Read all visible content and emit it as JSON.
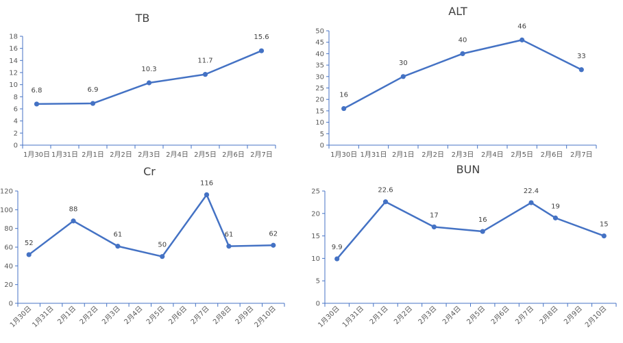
{
  "colors": {
    "series": "#4472C4",
    "axis": "#4472C4",
    "text": "#595959"
  },
  "chart_data": [
    {
      "type": "line",
      "title": "TB",
      "categories": [
        "1月30日",
        "1月31日",
        "2月1日",
        "2月2日",
        "2月3日",
        "2月4日",
        "2月5日",
        "2月6日",
        "2月7日"
      ],
      "yticks": [
        "0",
        "2",
        "4",
        "6",
        "8",
        "10",
        "12",
        "14",
        "16",
        "18"
      ],
      "ylim": [
        0,
        18
      ],
      "grid": false,
      "series": [
        {
          "x": [
            "1月30日",
            "2月1日",
            "2月3日",
            "2月5日",
            "2月7日"
          ],
          "values": [
            6.8,
            6.9,
            10.3,
            11.7,
            15.6
          ],
          "labels": [
            "6.8",
            "6.9",
            "10.3",
            "11.7",
            "15.6"
          ]
        }
      ]
    },
    {
      "type": "line",
      "title": "ALT",
      "categories": [
        "1月30日",
        "1月31日",
        "2月1日",
        "2月2日",
        "2月3日",
        "2月4日",
        "2月5日",
        "2月6日",
        "2月7日"
      ],
      "yticks": [
        "0",
        "5",
        "10",
        "15",
        "20",
        "25",
        "30",
        "35",
        "40",
        "45",
        "50"
      ],
      "ylim": [
        0,
        50
      ],
      "grid": false,
      "series": [
        {
          "x": [
            "1月30日",
            "2月1日",
            "2月3日",
            "2月5日",
            "2月7日"
          ],
          "values": [
            16,
            30,
            40,
            46,
            33
          ],
          "labels": [
            "16",
            "30",
            "40",
            "46",
            "33"
          ]
        }
      ]
    },
    {
      "type": "line",
      "title": "Cr",
      "categories": [
        "1月30日",
        "1月31日",
        "2月1日",
        "2月2日",
        "2月3日",
        "2月4日",
        "2月5日",
        "2月6日",
        "2月7日",
        "2月8日",
        "2月9日",
        "2月10日"
      ],
      "yticks": [
        "0",
        "20",
        "40",
        "60",
        "80",
        "100",
        "120"
      ],
      "ylim": [
        0,
        120
      ],
      "grid": false,
      "series": [
        {
          "x": [
            "1月30日",
            "2月1日",
            "2月3日",
            "2月5日",
            "2月7日",
            "2月8日",
            "2月10日"
          ],
          "values": [
            52,
            88,
            61,
            50,
            116,
            61,
            62
          ],
          "labels": [
            "52",
            "88",
            "61",
            "50",
            "116",
            "61",
            "62"
          ]
        }
      ]
    },
    {
      "type": "line",
      "title": "BUN",
      "categories": [
        "1月30日",
        "1月31日",
        "2月1日",
        "2月2日",
        "2月3日",
        "2月4日",
        "2月5日",
        "2月6日",
        "2月7日",
        "2月8日",
        "2月9日",
        "2月10日"
      ],
      "yticks": [
        "0",
        "5",
        "10",
        "15",
        "20",
        "25"
      ],
      "ylim": [
        0,
        25
      ],
      "grid": false,
      "series": [
        {
          "x": [
            "1月30日",
            "2月1日",
            "2月3日",
            "2月5日",
            "2月7日",
            "2月8日",
            "2月10日"
          ],
          "values": [
            9.9,
            22.6,
            17,
            16,
            22.4,
            19,
            15
          ],
          "labels": [
            "9.9",
            "22.6",
            "17",
            "16",
            "22.4",
            "19",
            "15"
          ]
        }
      ]
    }
  ]
}
